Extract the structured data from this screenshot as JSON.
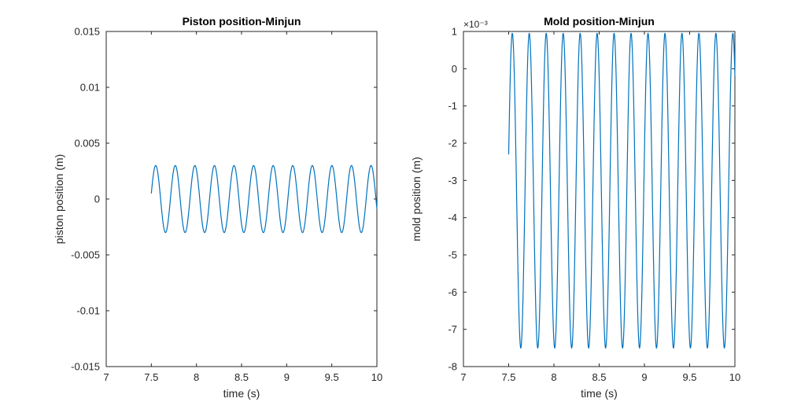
{
  "chart_data": [
    {
      "type": "line",
      "title": "Piston position-Minjun",
      "xlabel": "time (s)",
      "ylabel": "piston position (m)",
      "xlim": [
        7,
        10
      ],
      "ylim": [
        -0.015,
        0.015
      ],
      "x_ticks": [
        "7",
        "7.5",
        "8",
        "8.5",
        "9",
        "9.5",
        "10"
      ],
      "y_ticks": [
        "-0.015",
        "-0.01",
        "-0.005",
        "0",
        "0.005",
        "0.01",
        "0.015"
      ],
      "grid": false,
      "legend": "none",
      "line_color": "#0072BD",
      "series": [
        {
          "x_start": 7.5,
          "x_end": 10,
          "amplitude": 0.003,
          "offset": 0,
          "period": 0.217,
          "start_value": 0.0005,
          "description_visible_peaks": 11
        }
      ]
    },
    {
      "type": "line",
      "title": "Mold position-Minjun",
      "xlabel": "time (s)",
      "ylabel": "mold position (m)",
      "y_exponent": "×10⁻³",
      "xlim": [
        7,
        10
      ],
      "ylim": [
        -8,
        1
      ],
      "x_ticks": [
        "7",
        "7.5",
        "8",
        "8.5",
        "9",
        "9.5",
        "10"
      ],
      "y_ticks": [
        "-8",
        "-7",
        "-6",
        "-5",
        "-4",
        "-3",
        "-2",
        "-1",
        "0",
        "1"
      ],
      "grid": false,
      "legend": "none",
      "line_color": "#0072BD",
      "series": [
        {
          "x_start": 7.5,
          "x_end": 10,
          "max": 0.95,
          "min": -7.5,
          "period": 0.1875,
          "start_value": -2.3,
          "units_scale": 0.001
        }
      ]
    }
  ]
}
